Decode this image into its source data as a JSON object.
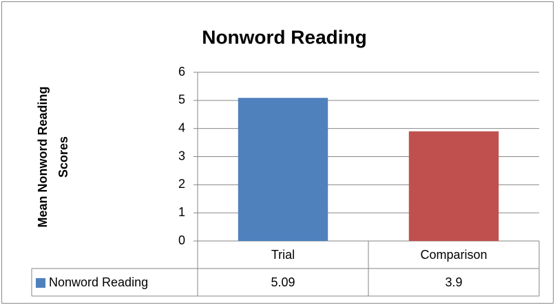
{
  "chart_data": {
    "type": "bar",
    "title": "Nonword Reading",
    "y_label": "Mean Nonword Reading Scores",
    "categories": [
      "Trial",
      "Comparison"
    ],
    "series": [
      {
        "name": "Nonword Reading",
        "colors": [
          "#4f81bd",
          "#c0504d"
        ],
        "values": [
          5.09,
          3.9
        ]
      }
    ],
    "ylim": [
      0,
      6
    ],
    "yticks": [
      0,
      1,
      2,
      3,
      4,
      5,
      6
    ],
    "grid": true,
    "data_table": true
  }
}
